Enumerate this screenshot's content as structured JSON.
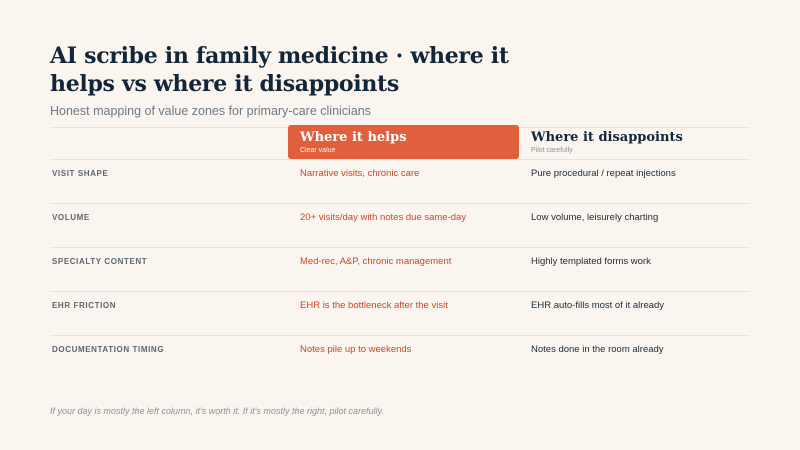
{
  "title": "AI scribe in family medicine · where it helps vs where it disappoints",
  "subtitle": "Honest mapping of value zones for primary-care clinicians",
  "columns": {
    "helps": {
      "heading": "Where it helps",
      "sub": "Clear value"
    },
    "disappoints": {
      "heading": "Where it disappoints",
      "sub": "Pilot carefully"
    }
  },
  "rows": [
    {
      "dimension": "VISIT SHAPE",
      "helps": "Narrative visits, chronic care",
      "disappoints": "Pure procedural / repeat injections"
    },
    {
      "dimension": "VOLUME",
      "helps": "20+ visits/day with notes due same-day",
      "disappoints": "Low volume, leisurely charting"
    },
    {
      "dimension": "SPECIALTY CONTENT",
      "helps": "Med-rec, A&P, chronic management",
      "disappoints": "Highly templated forms work"
    },
    {
      "dimension": "EHR FRICTION",
      "helps": "EHR is the bottleneck after the visit",
      "disappoints": "EHR auto-fills most of it already"
    },
    {
      "dimension": "DOCUMENTATION TIMING",
      "helps": "Notes pile up to weekends",
      "disappoints": "Notes done in the room already"
    }
  ],
  "footer": "If your day is mostly the left column, it's worth it. If it's mostly the right, pilot carefully.",
  "colors": {
    "accent": "#e0603e",
    "helps_text": "#c7472b",
    "ink": "#132538",
    "background": "#faf5ee"
  }
}
